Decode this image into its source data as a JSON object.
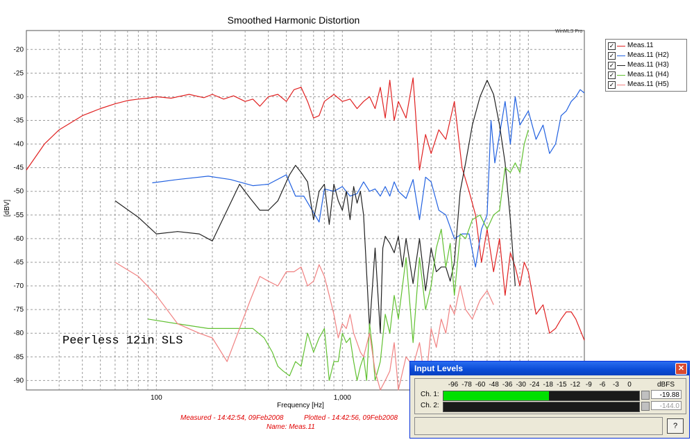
{
  "chart_data": {
    "type": "line",
    "title": "Smoothed Harmonic Distortion",
    "xlabel": "Frequency [Hz]",
    "ylabel": "[dBV]",
    "xscale": "log",
    "xlim": [
      20,
      20000
    ],
    "ylim": [
      -92,
      -16
    ],
    "yticks": [
      -20,
      -25,
      -30,
      -35,
      -40,
      -45,
      -50,
      -55,
      -60,
      -65,
      -70,
      -75,
      -80,
      -85,
      -90
    ],
    "xtick_labels": [
      {
        "value": 100,
        "label": "100"
      },
      {
        "value": 1000,
        "label": "1,000"
      }
    ],
    "grid": true,
    "legend_position": "top-right",
    "annotation": "Peerless 12in SLS",
    "watermark": "WinMLS Pro",
    "series": [
      {
        "name": "Meas.11",
        "color": "#e02020",
        "x": [
          20,
          25,
          30,
          40,
          50,
          60,
          70,
          80,
          90,
          100,
          120,
          150,
          180,
          200,
          230,
          260,
          300,
          330,
          360,
          400,
          450,
          500,
          550,
          600,
          650,
          700,
          750,
          800,
          900,
          1000,
          1100,
          1200,
          1300,
          1400,
          1500,
          1600,
          1700,
          1800,
          1900,
          2000,
          2200,
          2400,
          2600,
          2800,
          3000,
          3300,
          3600,
          4000,
          4400,
          4800,
          5200,
          5600,
          6000,
          6500,
          7000,
          7500,
          8000,
          8500,
          9000,
          9500,
          10000,
          11000,
          12000,
          13000,
          14000,
          15000,
          16000,
          17000,
          18000,
          20000
        ],
        "y": [
          -45.5,
          -40,
          -37,
          -34,
          -32.5,
          -31.5,
          -30.8,
          -30.5,
          -30.3,
          -30,
          -30.3,
          -29.5,
          -30.2,
          -29.5,
          -30.5,
          -29.8,
          -31,
          -30.5,
          -32,
          -30,
          -29.5,
          -31,
          -28.5,
          -28,
          -31,
          -34.5,
          -34,
          -31,
          -29.5,
          -31,
          -30.5,
          -32.5,
          -31,
          -30,
          -32.5,
          -28,
          -34.5,
          -26.5,
          -35,
          -31,
          -34.5,
          -26,
          -45.5,
          -38,
          -42,
          -37,
          -39,
          -31,
          -45,
          -50,
          -55,
          -65,
          -58,
          -67,
          -60,
          -72,
          -63,
          -66,
          -70,
          -65,
          -67,
          -76,
          -74,
          -80,
          -79,
          -77,
          -75.5,
          -75.5,
          -77,
          -81.5
        ]
      },
      {
        "name": "Meas.11 (H2)",
        "color": "#2060e0",
        "x": [
          95,
          130,
          190,
          250,
          330,
          400,
          500,
          560,
          620,
          700,
          750,
          800,
          900,
          1000,
          1100,
          1200,
          1300,
          1400,
          1500,
          1600,
          1700,
          1800,
          1900,
          2000,
          2200,
          2400,
          2600,
          2800,
          3000,
          3300,
          3600,
          4000,
          4400,
          4800,
          5200,
          5600,
          6000,
          6300,
          6600,
          7000,
          7500,
          8000,
          8500,
          9000,
          10000,
          11000,
          12000,
          13000,
          14000,
          15000,
          16000,
          17000,
          18000,
          19000,
          20000
        ],
        "y": [
          -48.2,
          -47.5,
          -46.8,
          -47.5,
          -48.8,
          -48.5,
          -46.5,
          -51,
          -51,
          -54.5,
          -56.5,
          -49.5,
          -50,
          -49,
          -51,
          -50.5,
          -48,
          -50,
          -49.5,
          -51,
          -49,
          -51,
          -48,
          -50,
          -51.5,
          -47.5,
          -56,
          -47,
          -48,
          -54,
          -55,
          -60,
          -59,
          -59,
          -66,
          -58,
          -55,
          -35,
          -44,
          -38,
          -31,
          -40,
          -30,
          -36,
          -33,
          -39,
          -36,
          -42,
          -40,
          -34,
          -33,
          -31,
          -30,
          -28.5,
          -29.2
        ]
      },
      {
        "name": "Meas.11 (H3)",
        "color": "#202020",
        "x": [
          60,
          80,
          100,
          130,
          170,
          200,
          240,
          280,
          320,
          360,
          400,
          450,
          520,
          560,
          600,
          650,
          700,
          750,
          800,
          850,
          900,
          950,
          1000,
          1050,
          1100,
          1150,
          1200,
          1250,
          1300,
          1400,
          1500,
          1600,
          1650,
          1700,
          1800,
          1900,
          2000,
          2100,
          2200,
          2400,
          2600,
          2800,
          3000,
          3200,
          3400,
          3600,
          3800,
          4000,
          4300,
          4600,
          5000,
          5500,
          6000,
          6500,
          7000,
          7500,
          8000,
          8500
        ],
        "y": [
          -52,
          -55.5,
          -59,
          -58.5,
          -59,
          -60.5,
          -54,
          -48.5,
          -51.5,
          -54,
          -54,
          -52,
          -46.5,
          -44.5,
          -46,
          -48,
          -56,
          -50,
          -48.5,
          -57,
          -48.5,
          -52,
          -54,
          -50,
          -56,
          -49,
          -52.5,
          -50,
          -55,
          -79,
          -62,
          -80,
          -62,
          -59.5,
          -61,
          -63,
          -59.5,
          -66,
          -60,
          -69.5,
          -60,
          -71,
          -62,
          -67,
          -66,
          -66,
          -69,
          -65,
          -50,
          -44,
          -36,
          -30,
          -26.5,
          -29.5,
          -36,
          -44,
          -56,
          -70
        ]
      },
      {
        "name": "Meas.11 (H4)",
        "color": "#60c030",
        "x": [
          90,
          130,
          190,
          260,
          330,
          380,
          420,
          450,
          480,
          520,
          560,
          600,
          650,
          700,
          750,
          800,
          850,
          900,
          950,
          1000,
          1050,
          1100,
          1150,
          1200,
          1250,
          1300,
          1350,
          1400,
          1450,
          1500,
          1550,
          1600,
          1700,
          1800,
          1900,
          2000,
          2200,
          2400,
          2600,
          2800,
          3000,
          3200,
          3400,
          3600,
          3800,
          4000,
          4300,
          4600,
          5000,
          5500,
          6000,
          6500,
          7000,
          7500,
          8000,
          8500,
          9000,
          9500,
          10000
        ],
        "y": [
          -77,
          -78,
          -79,
          -79,
          -79,
          -81,
          -84,
          -87,
          -88,
          -89,
          -86,
          -87,
          -80,
          -84,
          -81,
          -79,
          -90,
          -86,
          -86,
          -80,
          -82,
          -81,
          -86,
          -90,
          -87,
          -85,
          -90,
          -78,
          -83,
          -90,
          -88,
          -86,
          -76,
          -80,
          -72,
          -77,
          -64,
          -82,
          -64,
          -75,
          -70,
          -62,
          -58,
          -66,
          -61,
          -72,
          -59,
          -60,
          -56,
          -55,
          -58,
          -55,
          -54,
          -45,
          -46,
          -44,
          -46,
          -40,
          -37
        ]
      },
      {
        "name": "Meas.11 (H5)",
        "color": "#f08080",
        "x": [
          60,
          80,
          100,
          130,
          170,
          200,
          240,
          280,
          320,
          360,
          400,
          450,
          500,
          550,
          600,
          650,
          700,
          750,
          800,
          850,
          900,
          950,
          1000,
          1050,
          1100,
          1150,
          1200,
          1250,
          1300,
          1400,
          1500,
          1600,
          1700,
          1800,
          1900,
          2000,
          2200,
          2400,
          2600,
          2800,
          3000,
          3200,
          3400,
          3600,
          3800,
          4000,
          4300,
          4600,
          5000,
          5500,
          6000,
          6500
        ],
        "y": [
          -65,
          -68,
          -72,
          -78,
          -80,
          -81,
          -86,
          -79,
          -73,
          -68,
          -69,
          -70,
          -67,
          -67,
          -66,
          -70,
          -69,
          -65.5,
          -68,
          -72,
          -76,
          -81,
          -78,
          -79,
          -76,
          -80,
          -82,
          -84,
          -85,
          -80,
          -88,
          -92,
          -90,
          -88,
          -82,
          -92,
          -85,
          -87,
          -82,
          -91,
          -79,
          -83,
          -77,
          -80,
          -74,
          -76,
          -70,
          -75,
          -77,
          -73,
          -71,
          -74
        ]
      }
    ]
  },
  "footer": {
    "measured": "Measured - 14:42:54, 09Feb2008",
    "plotted": "Plotted - 14:42:56, 09Feb2008",
    "name": "Name: Meas.11"
  },
  "input_levels": {
    "title": "Input Levels",
    "close_glyph": "✕",
    "scale": [
      "-96",
      "-78",
      "-60",
      "-48",
      "-36",
      "-30",
      "-24",
      "-18",
      "-15",
      "-12",
      "-9",
      "-6",
      "-3",
      "0"
    ],
    "unit": "dBFS",
    "channels": [
      {
        "label": "Ch. 1:",
        "value": "-19.88",
        "level_fraction": 0.54
      },
      {
        "label": "Ch. 2:",
        "value": "-144.0",
        "level_fraction": 0
      }
    ],
    "help_label": "?"
  }
}
